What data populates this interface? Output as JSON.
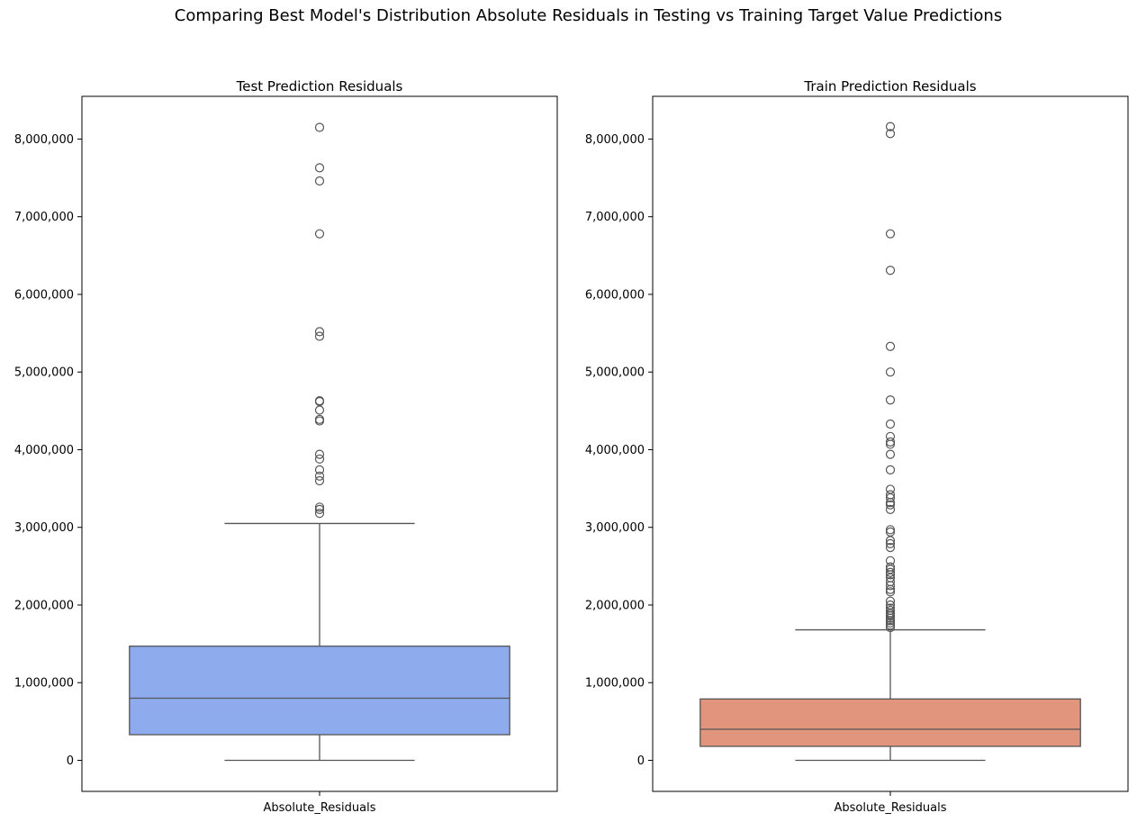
{
  "figure_title": "Comparing Best Model's Distribution Absolute Residuals in Testing vs Training Target Value Predictions",
  "chart_data": [
    {
      "type": "box",
      "title": "Test Prediction Residuals",
      "xlabel": "",
      "ylabel": "",
      "categories": [
        "Absolute_Residuals"
      ],
      "color": "#8eabed",
      "edge_color": "#555555",
      "ylim": [
        -400000,
        8550000
      ],
      "yticks": [
        0,
        1000000,
        2000000,
        3000000,
        4000000,
        5000000,
        6000000,
        7000000,
        8000000
      ],
      "ytick_labels": [
        "0",
        "1,000,000",
        "2,000,000",
        "3,000,000",
        "4,000,000",
        "5,000,000",
        "6,000,000",
        "7,000,000",
        "8,000,000"
      ],
      "grid": false,
      "box": {
        "min": 0,
        "q1": 330000,
        "median": 800000,
        "q3": 1470000,
        "max": 3050000
      },
      "outliers": [
        3180000,
        3230000,
        3260000,
        3600000,
        3660000,
        3740000,
        3880000,
        3940000,
        4370000,
        4390000,
        4510000,
        4620000,
        4630000,
        5460000,
        5520000,
        6780000,
        7460000,
        7630000,
        8150000
      ]
    },
    {
      "type": "box",
      "title": "Train Prediction Residuals",
      "xlabel": "",
      "ylabel": "",
      "categories": [
        "Absolute_Residuals"
      ],
      "color": "#e0957c",
      "edge_color": "#555555",
      "ylim": [
        -400000,
        8550000
      ],
      "yticks": [
        0,
        1000000,
        2000000,
        3000000,
        4000000,
        5000000,
        6000000,
        7000000,
        8000000
      ],
      "ytick_labels": [
        "0",
        "1,000,000",
        "2,000,000",
        "3,000,000",
        "4,000,000",
        "5,000,000",
        "6,000,000",
        "7,000,000",
        "8,000,000"
      ],
      "grid": false,
      "box": {
        "min": 0,
        "q1": 180000,
        "median": 400000,
        "q3": 790000,
        "max": 1680000
      },
      "outliers": [
        1710000,
        1740000,
        1770000,
        1800000,
        1830000,
        1860000,
        1880000,
        1900000,
        1930000,
        1960000,
        2000000,
        2050000,
        2170000,
        2200000,
        2250000,
        2300000,
        2350000,
        2390000,
        2420000,
        2460000,
        2490000,
        2570000,
        2740000,
        2790000,
        2830000,
        2940000,
        2970000,
        3230000,
        3290000,
        3320000,
        3380000,
        3420000,
        3490000,
        3740000,
        3940000,
        4070000,
        4100000,
        4170000,
        4330000,
        4640000,
        5000000,
        5330000,
        6310000,
        6780000,
        8070000,
        8160000
      ]
    }
  ]
}
